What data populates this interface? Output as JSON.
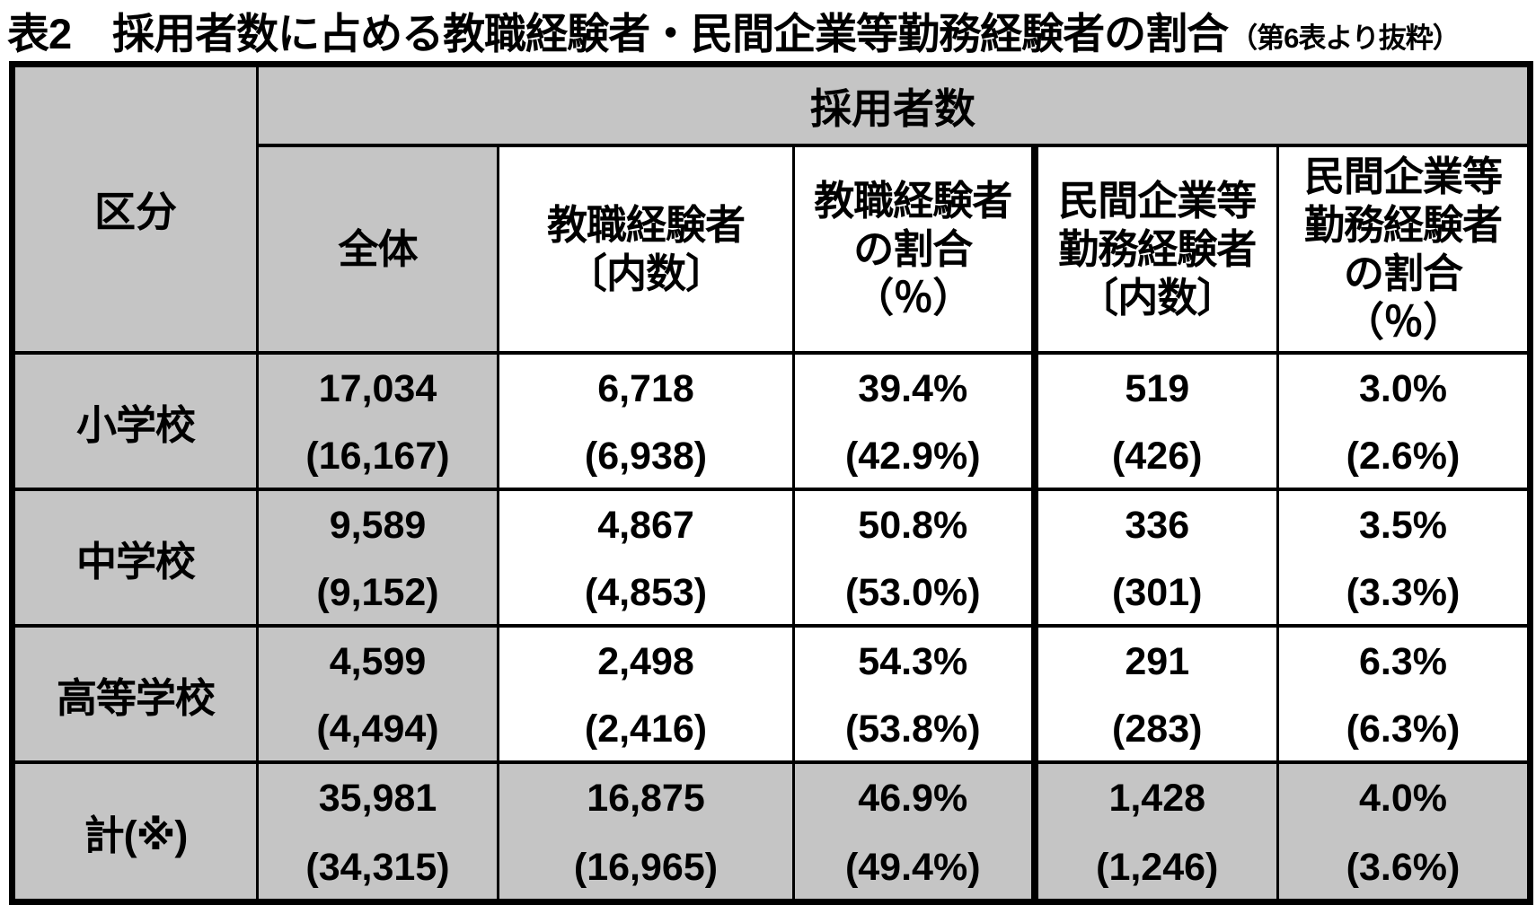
{
  "title": {
    "main": "表2　採用者数に占める教職経験者・民間企業等勤務経験者の割合",
    "note": "（第6表より抜粋）"
  },
  "colors": {
    "header_gray": "#c5c5c5",
    "border_black": "#000000",
    "cell_white": "#ffffff"
  },
  "table": {
    "corner_label": "区分",
    "band_label": "採用者数",
    "columns": [
      {
        "label": "全体"
      },
      {
        "label": "教職経験者\n〔内数〕"
      },
      {
        "label": "教職経験者\nの割合\n（％）"
      },
      {
        "label": "民間企業等\n勤務経験者\n〔内数〕"
      },
      {
        "label": "民間企業等\n勤務経験者\nの割合\n（％）"
      }
    ],
    "rows": [
      {
        "label": "小学校",
        "cells": [
          {
            "main": "17,034",
            "sub": "(16,167)"
          },
          {
            "main": "6,718",
            "sub": "(6,938)"
          },
          {
            "main": "39.4%",
            "sub": "(42.9%)"
          },
          {
            "main": "519",
            "sub": "(426)"
          },
          {
            "main": "3.0%",
            "sub": "(2.6%)"
          }
        ]
      },
      {
        "label": "中学校",
        "cells": [
          {
            "main": "9,589",
            "sub": "(9,152)"
          },
          {
            "main": "4,867",
            "sub": "(4,853)"
          },
          {
            "main": "50.8%",
            "sub": "(53.0%)"
          },
          {
            "main": "336",
            "sub": "(301)"
          },
          {
            "main": "3.5%",
            "sub": "(3.3%)"
          }
        ]
      },
      {
        "label": "高等学校",
        "cells": [
          {
            "main": "4,599",
            "sub": "(4,494)"
          },
          {
            "main": "2,498",
            "sub": "(2,416)"
          },
          {
            "main": "54.3%",
            "sub": "(53.8%)"
          },
          {
            "main": "291",
            "sub": "(283)"
          },
          {
            "main": "6.3%",
            "sub": "(6.3%)"
          }
        ]
      },
      {
        "label": "計(※)",
        "cells": [
          {
            "main": "35,981",
            "sub": "(34,315)"
          },
          {
            "main": "16,875",
            "sub": "(16,965)"
          },
          {
            "main": "46.9%",
            "sub": "(49.4%)"
          },
          {
            "main": "1,428",
            "sub": "(1,246)"
          },
          {
            "main": "4.0%",
            "sub": "(3.6%)"
          }
        ]
      }
    ]
  }
}
